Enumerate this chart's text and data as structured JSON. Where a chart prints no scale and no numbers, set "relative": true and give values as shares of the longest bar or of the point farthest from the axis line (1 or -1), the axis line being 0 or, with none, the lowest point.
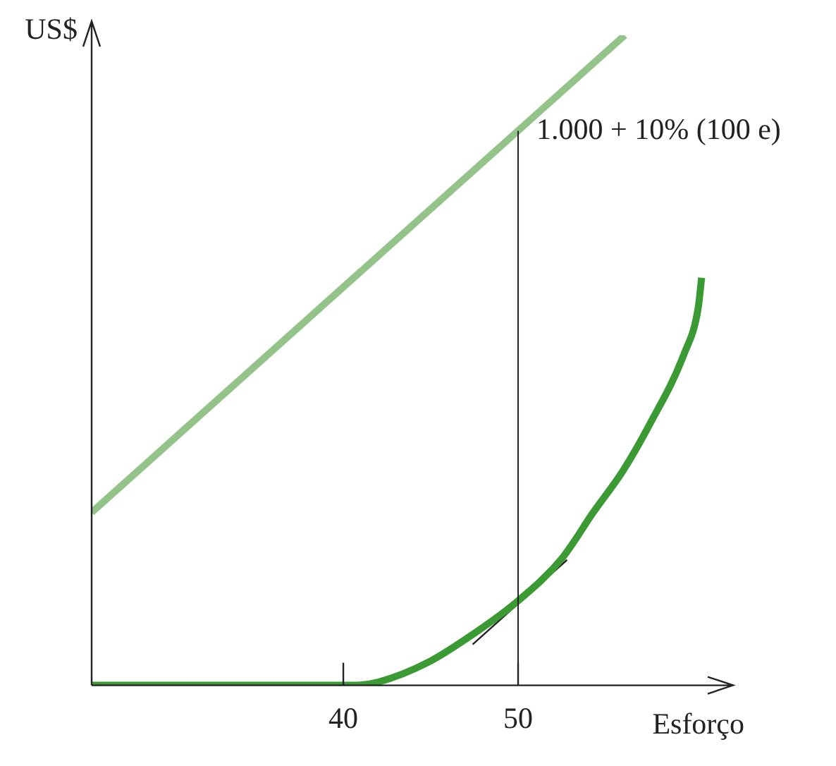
{
  "chart_data": {
    "type": "line",
    "relative": true,
    "xlabel": "Esforço",
    "ylabel": "US$",
    "xlim": [
      25.6,
      62.3
    ],
    "xticks": [
      40,
      50
    ],
    "tick_labels": "x",
    "grid": false,
    "legend": false,
    "marker": "none",
    "line_style": "solid",
    "series": [
      {
        "color": "#94c38a",
        "x": [
          25.6,
          56.1
        ],
        "values": [
          0.266,
          1
        ]
      },
      {
        "color": "#3c9a35",
        "x": [
          25.6,
          40.6,
          42,
          44.9,
          47.5,
          50,
          52.5,
          54.3,
          56,
          57.5,
          59.5,
          60.3,
          60.5
        ],
        "values": [
          0,
          0,
          0.005,
          0.036,
          0.08,
          0.13,
          0.195,
          0.266,
          0.33,
          0.4,
          0.51,
          0.58,
          0.627
        ]
      },
      {
        "color": "#222222",
        "x": [
          47.4,
          52.8
        ],
        "values": [
          0.063,
          0.193
        ]
      }
    ],
    "ref_lines": [
      {
        "axis": "x",
        "value": 50,
        "color": "#222222"
      }
    ],
    "annotations": [
      {
        "text": "1.000 + 10% (100 e)",
        "x": 50,
        "y": 0.853
      }
    ]
  }
}
